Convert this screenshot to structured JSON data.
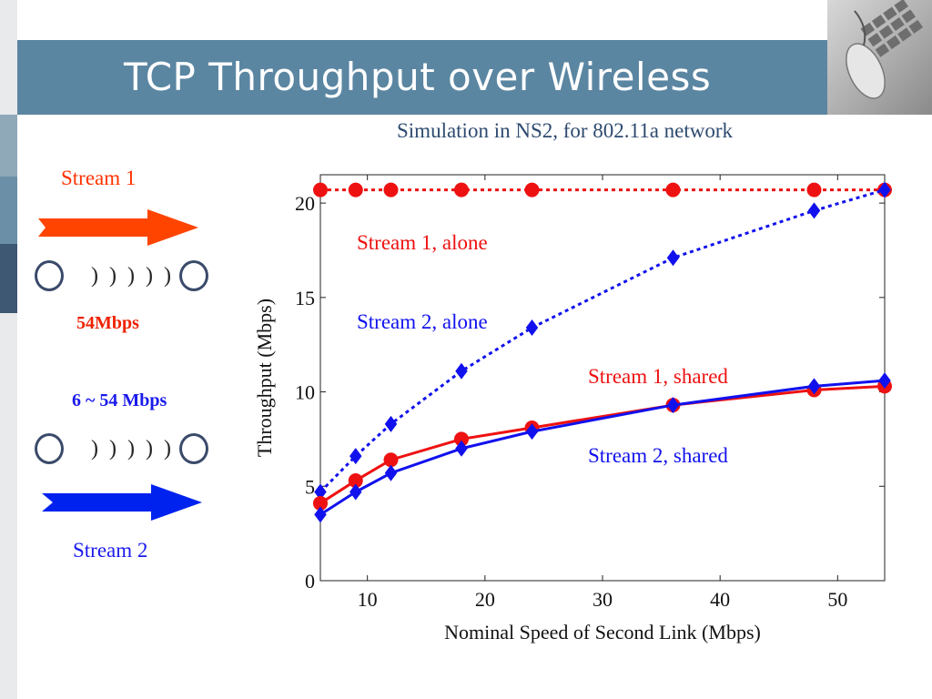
{
  "slide": {
    "title": "TCP Throughput over Wireless",
    "subtitle": "Simulation in NS2, for 802.11a network"
  },
  "diagram": {
    "stream1_label": "Stream 1",
    "stream2_label": "Stream 2",
    "link1_rate": "54Mbps",
    "link2_rate": "6 ~ 54 Mbps",
    "waves_symbol": ") ) ) ) )",
    "colors": {
      "stream1": "#ff4400",
      "stream2": "#0022ee",
      "rate1": "#ee2200",
      "rate2": "#1a1aee"
    }
  },
  "chart_data": {
    "type": "line",
    "xlabel": "Nominal Speed of Second Link (Mbps)",
    "ylabel": "Throughput (Mbps)",
    "xlim": [
      6,
      54
    ],
    "ylim": [
      0,
      21.5
    ],
    "xticks": [
      10,
      20,
      30,
      40,
      50
    ],
    "yticks": [
      0,
      5,
      10,
      15,
      20
    ],
    "x": [
      6,
      9,
      12,
      18,
      24,
      36,
      48,
      54
    ],
    "grid": false,
    "series": [
      {
        "name": "Stream 1, alone",
        "color": "#ee1111",
        "style": "dotted",
        "marker": "circle",
        "values": [
          20.7,
          20.7,
          20.7,
          20.7,
          20.7,
          20.7,
          20.7,
          20.7
        ]
      },
      {
        "name": "Stream 2, alone",
        "color": "#1111ee",
        "style": "dotted",
        "marker": "diamond",
        "values": [
          4.7,
          6.6,
          8.3,
          11.1,
          13.4,
          17.1,
          19.6,
          20.7
        ]
      },
      {
        "name": "Stream 1, shared",
        "color": "#ee1111",
        "style": "solid",
        "marker": "circle",
        "values": [
          4.1,
          5.3,
          6.4,
          7.5,
          8.1,
          9.3,
          10.1,
          10.3
        ]
      },
      {
        "name": "Stream 2, shared",
        "color": "#1111ee",
        "style": "solid",
        "marker": "diamond",
        "values": [
          3.5,
          4.7,
          5.7,
          7.0,
          7.9,
          9.3,
          10.3,
          10.6
        ]
      }
    ]
  }
}
